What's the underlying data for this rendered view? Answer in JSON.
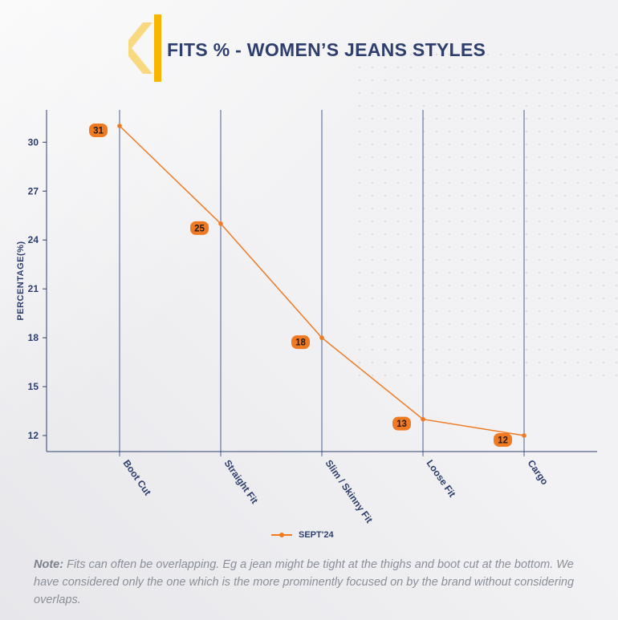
{
  "header": {
    "title": "FITS % - WOMEN’S JEANS STYLES"
  },
  "colors": {
    "accent": "#f07a22",
    "navy": "#2e3f6e",
    "logo_yellow": "#f7b500",
    "logo_light": "#f9d36a"
  },
  "chart_data": {
    "type": "line",
    "title": "FITS % - WOMEN’S JEANS STYLES",
    "xlabel": "",
    "ylabel": "PERCENTAGE(%)",
    "categories": [
      "Boot Cut",
      "Straight Fit",
      "Slim / Skinny Fit",
      "Loose Fit",
      "Cargo"
    ],
    "series": [
      {
        "name": "SEPT'24",
        "values": [
          31,
          25,
          18,
          13,
          12
        ]
      }
    ],
    "yticks": [
      12,
      15,
      18,
      21,
      24,
      27,
      30
    ],
    "ylim": [
      11,
      32
    ],
    "grid": "vertical",
    "legend": "bottom-center"
  },
  "note": {
    "label": "Note:",
    "text": " Fits can often be overlapping. Eg a jean might be tight at the thighs and boot cut at the bottom. We have considered only the one which is the more prominently focused on by the brand without considering overlaps."
  }
}
